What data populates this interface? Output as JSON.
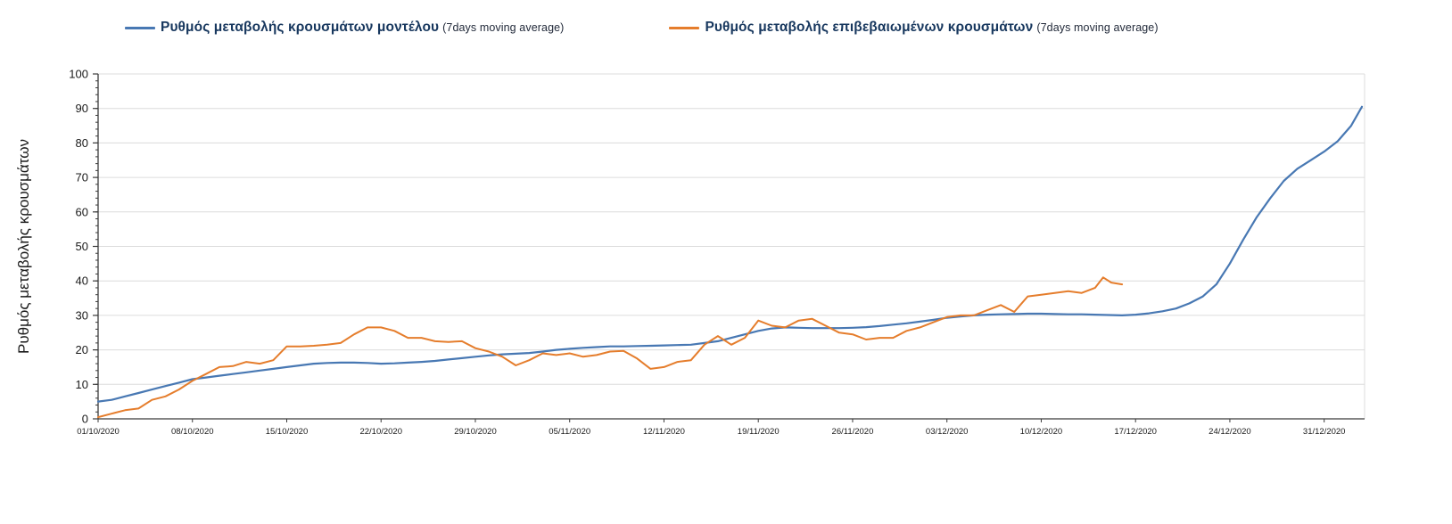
{
  "legend": {
    "items": [
      {
        "label": "Ρυθμός μεταβολής κρουσμάτων μοντέλου",
        "suffix": "(7days moving average)"
      },
      {
        "label": "Ρυθμός μεταβολής επιβεβαιωμένων κρουσμάτων",
        "suffix": "(7days moving average)"
      }
    ]
  },
  "chart_data": {
    "type": "line",
    "title": "",
    "xlabel": "",
    "ylabel": "Ρυθμός μεταβολής κρουσμάτων",
    "ylim": [
      0,
      100
    ],
    "ytick_step": 10,
    "ytick_minor_step": 2,
    "x_domain": [
      0,
      94
    ],
    "grid": "horizontal",
    "legend_position": "top",
    "colors": {
      "grid": "#dcdcdc",
      "axis": "#3b3b3b"
    },
    "x_ticks": [
      {
        "day": 0,
        "label": "01/10/2020"
      },
      {
        "day": 7,
        "label": "08/10/2020"
      },
      {
        "day": 14,
        "label": "15/10/2020"
      },
      {
        "day": 21,
        "label": "22/10/2020"
      },
      {
        "day": 28,
        "label": "29/10/2020"
      },
      {
        "day": 35,
        "label": "05/11/2020"
      },
      {
        "day": 42,
        "label": "12/11/2020"
      },
      {
        "day": 49,
        "label": "19/11/2020"
      },
      {
        "day": 56,
        "label": "26/11/2020"
      },
      {
        "day": 63,
        "label": "03/12/2020"
      },
      {
        "day": 70,
        "label": "10/12/2020"
      },
      {
        "day": 77,
        "label": "17/12/2020"
      },
      {
        "day": 84,
        "label": "24/12/2020"
      },
      {
        "day": 91,
        "label": "31/12/2020"
      }
    ],
    "series": [
      {
        "id": "model",
        "name": "Ρυθμός μεταβολής κρουσμάτων μοντέλου (7days moving average)",
        "color": "#4878b3",
        "stroke_width": 2.2,
        "points": [
          [
            0,
            5
          ],
          [
            1,
            5.5
          ],
          [
            2,
            6.5
          ],
          [
            3,
            7.5
          ],
          [
            4,
            8.5
          ],
          [
            5,
            9.5
          ],
          [
            6,
            10.5
          ],
          [
            7,
            11.5
          ],
          [
            8,
            12
          ],
          [
            9,
            12.5
          ],
          [
            10,
            13
          ],
          [
            11,
            13.5
          ],
          [
            12,
            14
          ],
          [
            13,
            14.5
          ],
          [
            14,
            15
          ],
          [
            15,
            15.5
          ],
          [
            16,
            16
          ],
          [
            17,
            16.2
          ],
          [
            18,
            16.3
          ],
          [
            19,
            16.3
          ],
          [
            20,
            16.2
          ],
          [
            21,
            16
          ],
          [
            22,
            16.1
          ],
          [
            23,
            16.3
          ],
          [
            24,
            16.5
          ],
          [
            25,
            16.8
          ],
          [
            26,
            17.2
          ],
          [
            27,
            17.6
          ],
          [
            28,
            18
          ],
          [
            29,
            18.4
          ],
          [
            30,
            18.7
          ],
          [
            31,
            18.9
          ],
          [
            32,
            19.1
          ],
          [
            33,
            19.5
          ],
          [
            34,
            20
          ],
          [
            35,
            20.3
          ],
          [
            36,
            20.6
          ],
          [
            37,
            20.8
          ],
          [
            38,
            21
          ],
          [
            39,
            21
          ],
          [
            40,
            21.1
          ],
          [
            41,
            21.2
          ],
          [
            42,
            21.3
          ],
          [
            43,
            21.4
          ],
          [
            44,
            21.5
          ],
          [
            45,
            22
          ],
          [
            46,
            22.5
          ],
          [
            47,
            23.5
          ],
          [
            48,
            24.5
          ],
          [
            49,
            25.5
          ],
          [
            50,
            26.2
          ],
          [
            51,
            26.5
          ],
          [
            52,
            26.4
          ],
          [
            53,
            26.3
          ],
          [
            54,
            26.3
          ],
          [
            55,
            26.3
          ],
          [
            56,
            26.4
          ],
          [
            57,
            26.6
          ],
          [
            58,
            26.9
          ],
          [
            59,
            27.3
          ],
          [
            60,
            27.7
          ],
          [
            61,
            28.2
          ],
          [
            62,
            28.7
          ],
          [
            63,
            29.3
          ],
          [
            64,
            29.7
          ],
          [
            65,
            30
          ],
          [
            66,
            30.2
          ],
          [
            67,
            30.3
          ],
          [
            68,
            30.4
          ],
          [
            69,
            30.5
          ],
          [
            70,
            30.5
          ],
          [
            71,
            30.4
          ],
          [
            72,
            30.3
          ],
          [
            73,
            30.3
          ],
          [
            74,
            30.2
          ],
          [
            75,
            30.1
          ],
          [
            76,
            30
          ],
          [
            77,
            30.2
          ],
          [
            78,
            30.6
          ],
          [
            79,
            31.2
          ],
          [
            80,
            32
          ],
          [
            81,
            33.5
          ],
          [
            82,
            35.5
          ],
          [
            83,
            39
          ],
          [
            84,
            45
          ],
          [
            85,
            52
          ],
          [
            86,
            58.5
          ],
          [
            87,
            64
          ],
          [
            88,
            69
          ],
          [
            89,
            72.5
          ],
          [
            90,
            75
          ],
          [
            91,
            77.5
          ],
          [
            92,
            80.5
          ],
          [
            93,
            85
          ],
          [
            93.8,
            90.5
          ]
        ]
      },
      {
        "id": "confirmed",
        "name": "Ρυθμός μεταβολής επιβεβαιωμένων κρουσμάτων (7days moving average)",
        "color": "#e57d2c",
        "stroke_width": 2,
        "points": [
          [
            0,
            0.5
          ],
          [
            1,
            1.5
          ],
          [
            2,
            2.5
          ],
          [
            3,
            3
          ],
          [
            4,
            5.5
          ],
          [
            5,
            6.5
          ],
          [
            6,
            8.5
          ],
          [
            7,
            11
          ],
          [
            8,
            13
          ],
          [
            9,
            15
          ],
          [
            10,
            15.3
          ],
          [
            11,
            16.5
          ],
          [
            12,
            16
          ],
          [
            13,
            17
          ],
          [
            14,
            21
          ],
          [
            15,
            21
          ],
          [
            16,
            21.2
          ],
          [
            17,
            21.5
          ],
          [
            18,
            22
          ],
          [
            19,
            24.5
          ],
          [
            20,
            26.5
          ],
          [
            21,
            26.5
          ],
          [
            22,
            25.5
          ],
          [
            23,
            23.5
          ],
          [
            24,
            23.5
          ],
          [
            25,
            22.5
          ],
          [
            26,
            22.3
          ],
          [
            27,
            22.5
          ],
          [
            28,
            20.5
          ],
          [
            29,
            19.5
          ],
          [
            30,
            18
          ],
          [
            31,
            15.5
          ],
          [
            32,
            17
          ],
          [
            33,
            19
          ],
          [
            34,
            18.5
          ],
          [
            35,
            19
          ],
          [
            36,
            18
          ],
          [
            37,
            18.5
          ],
          [
            38,
            19.5
          ],
          [
            39,
            19.7
          ],
          [
            40,
            17.5
          ],
          [
            41,
            14.5
          ],
          [
            42,
            15
          ],
          [
            43,
            16.5
          ],
          [
            44,
            17
          ],
          [
            45,
            21.5
          ],
          [
            46,
            24
          ],
          [
            47,
            21.5
          ],
          [
            48,
            23.5
          ],
          [
            49,
            28.5
          ],
          [
            50,
            27
          ],
          [
            51,
            26.5
          ],
          [
            52,
            28.5
          ],
          [
            53,
            29
          ],
          [
            54,
            27
          ],
          [
            55,
            25
          ],
          [
            56,
            24.5
          ],
          [
            57,
            23
          ],
          [
            58,
            23.5
          ],
          [
            59,
            23.5
          ],
          [
            60,
            25.5
          ],
          [
            61,
            26.5
          ],
          [
            62,
            28
          ],
          [
            63,
            29.5
          ],
          [
            64,
            30
          ],
          [
            65,
            30
          ],
          [
            66,
            31.5
          ],
          [
            67,
            33
          ],
          [
            68,
            31
          ],
          [
            69,
            35.5
          ],
          [
            70,
            36
          ],
          [
            71,
            36.5
          ],
          [
            72,
            37
          ],
          [
            73,
            36.5
          ],
          [
            74,
            38
          ],
          [
            74.6,
            41
          ],
          [
            75.2,
            39.5
          ],
          [
            76,
            39
          ]
        ]
      }
    ]
  }
}
